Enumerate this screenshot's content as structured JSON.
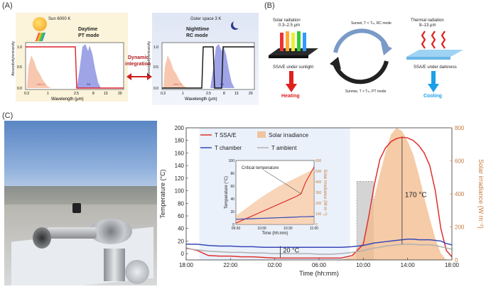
{
  "panelA": {
    "label": "(A)",
    "day": {
      "sun_label": "Sun 6000 K",
      "mode_line1": "Daytime",
      "mode_line2": "PT mode",
      "ylabel": "Absorptivity/emissivity",
      "xlabel": "Wavelength (μm)",
      "yticks": [
        "0.0",
        "0.5",
        "1.0"
      ],
      "xticks": [
        "0.3",
        "1",
        "2.5",
        "8",
        "13",
        "20"
      ],
      "band_labels": [
        "AM1.5",
        "BB"
      ]
    },
    "night": {
      "space_label": "Outer space 3 K",
      "mode_line1": "Nighttime",
      "mode_line2": "RC mode",
      "ylabel": "Absorptivity/emissivity",
      "xlabel": "Wavelength (μm)",
      "yticks": [
        "0.0",
        "0.5",
        "1.0"
      ],
      "xticks": [
        "0.3",
        "1",
        "2.5",
        "8",
        "13",
        "20"
      ],
      "band_labels": [
        "AM1.5",
        "BB"
      ]
    },
    "arrow_line1": "Dynamic",
    "arrow_line2": "integration"
  },
  "panelB": {
    "label": "(B)",
    "left_title1": "Solar radiation",
    "left_title2": "0.3–2.5 μm",
    "left_caption": "SSA/E under sunlight",
    "left_effect": "Heating",
    "top_arc": "Sunset, T < Tₘ, RC mode",
    "bottom_arc": "Sunrise, T > Tₘ, PT mode",
    "right_title1": "Thermal radiation",
    "right_title2": "8–13 μm",
    "right_caption": "SSA/E under darkness",
    "right_effect": "Cooling"
  },
  "panelC": {
    "label": "(C)",
    "legend": [
      "T SSA/E",
      "T chamber",
      "T ambient",
      "Solar irradiance"
    ],
    "annotation_20": "20 °C",
    "annotation_170": "170 °C",
    "inset_annotation": "Critical temperature"
  },
  "colors": {
    "ssae": "#e0302c",
    "chamber": "#3848b8",
    "ambient": "#b0b0b0",
    "solar": "#f3b98a",
    "arrow_red": "#e0201c",
    "cool_blue": "#1aa0e8"
  },
  "chart_data": [
    {
      "type": "line",
      "title": "",
      "xlabel": "Time (hh:mm)",
      "ylabel": "Temperature (°C)",
      "y2label": "Solar irradiance (W m⁻²)",
      "xticks": [
        "18:00",
        "22:00",
        "02:00",
        "06:00",
        "10:00",
        "14:00",
        "18:00"
      ],
      "yticks": [
        0,
        20,
        40,
        60,
        80,
        100,
        120,
        140,
        160,
        180,
        200
      ],
      "y2ticks": [
        0,
        200,
        400,
        600,
        800
      ],
      "ylim": [
        -10,
        200
      ],
      "y2lim": [
        0,
        800
      ],
      "x": [
        0,
        1,
        2,
        3,
        4,
        5,
        6,
        7,
        8,
        9,
        10,
        11,
        12,
        13,
        14,
        15,
        16,
        16.5,
        17,
        17.5,
        18,
        18.5,
        19,
        19.5,
        20,
        20.5,
        21,
        21.5,
        22,
        22.5,
        23,
        23.5,
        24
      ],
      "series": [
        {
          "name": "T SSA/E",
          "values": [
            9,
            5,
            -3,
            -4,
            -4,
            -5,
            -5,
            -6,
            -7,
            -7,
            -7,
            -7,
            -7,
            -7,
            -7,
            -3,
            15,
            60,
            110,
            150,
            168,
            178,
            183,
            185,
            184,
            180,
            172,
            160,
            140,
            100,
            40,
            5,
            -5
          ]
        },
        {
          "name": "T chamber",
          "values": [
            15,
            15,
            13,
            12,
            12,
            11,
            11,
            10,
            10,
            10,
            10,
            10,
            10,
            10,
            10,
            11,
            13,
            15,
            17,
            18,
            19,
            20,
            21,
            22,
            23,
            23,
            22,
            22,
            22,
            21,
            20,
            16,
            14
          ]
        },
        {
          "name": "T ambient",
          "values": [
            8,
            6,
            4,
            3,
            2,
            2,
            1,
            1,
            0,
            0,
            0,
            0,
            -1,
            -1,
            0,
            2,
            5,
            7,
            9,
            10,
            12,
            13,
            14,
            15,
            15,
            15,
            14,
            14,
            14,
            13,
            11,
            9,
            7
          ]
        },
        {
          "name": "Solar irradiance",
          "axis": "right",
          "values": [
            0,
            0,
            0,
            0,
            0,
            0,
            0,
            0,
            0,
            0,
            0,
            0,
            0,
            0,
            0,
            20,
            120,
            250,
            380,
            520,
            650,
            760,
            800,
            780,
            720,
            640,
            520,
            380,
            250,
            130,
            40,
            0,
            0
          ]
        }
      ]
    },
    {
      "type": "line",
      "title": "",
      "xlabel": "Time (hh:mm)",
      "ylabel": "Temperature (°C)",
      "y2label": "Solar irradiance (W m⁻²)",
      "xticks": [
        "09:30",
        "10:00",
        "10:30",
        "11:00"
      ],
      "yticks": [
        0,
        20,
        40,
        60,
        80,
        100
      ],
      "y2ticks": [
        0,
        100,
        200,
        300,
        400,
        500,
        600
      ],
      "ylim": [
        0,
        100
      ],
      "y2lim": [
        0,
        600
      ],
      "x": [
        0,
        10,
        20,
        30,
        40,
        50,
        60,
        70,
        75,
        80,
        90
      ],
      "series": [
        {
          "name": "T SSA/E",
          "values": [
            2,
            8,
            14,
            20,
            26,
            32,
            38,
            44,
            48,
            65,
            90
          ]
        },
        {
          "name": "T chamber",
          "values": [
            8,
            8.5,
            9,
            9.5,
            10,
            10.5,
            11,
            11.5,
            12,
            12,
            12.5
          ]
        },
        {
          "name": "Solar irradiance",
          "axis": "right",
          "values": [
            80,
            140,
            200,
            260,
            310,
            360,
            400,
            440,
            460,
            480,
            520
          ]
        }
      ]
    }
  ]
}
